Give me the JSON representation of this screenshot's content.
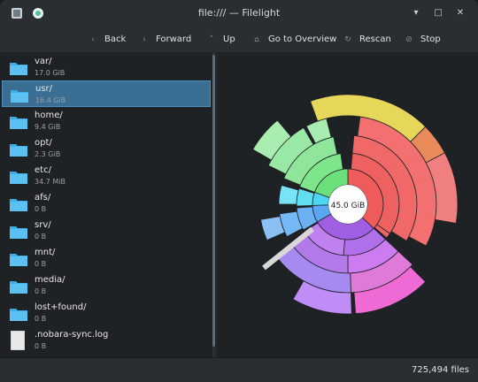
{
  "window": {
    "title": "file:/// — Filelight"
  },
  "toolbar": {
    "back": "Back",
    "forward": "Forward",
    "up": "Up",
    "overview": "Go to Overview",
    "rescan": "Rescan",
    "stop": "Stop"
  },
  "sidebar": {
    "items": [
      {
        "name": "var/",
        "size": "17.0 GiB",
        "icon": "folder-icon"
      },
      {
        "name": "usr/",
        "size": "16.4 GiB",
        "icon": "folder-icon"
      },
      {
        "name": "home/",
        "size": "9.4 GiB",
        "icon": "folder-icon"
      },
      {
        "name": "opt/",
        "size": "2.3 GiB",
        "icon": "folder-icon"
      },
      {
        "name": "etc/",
        "size": "34.7 MiB",
        "icon": "folder-icon"
      },
      {
        "name": "afs/",
        "size": "0 B",
        "icon": "folder-icon"
      },
      {
        "name": "srv/",
        "size": "0 B",
        "icon": "folder-icon"
      },
      {
        "name": "mnt/",
        "size": "0 B",
        "icon": "folder-icon"
      },
      {
        "name": "media/",
        "size": "0 B",
        "icon": "folder-icon"
      },
      {
        "name": "lost+found/",
        "size": "0 B",
        "icon": "folder-icon"
      },
      {
        "name": ".nobara-sync.log",
        "size": "0 B",
        "icon": "file-icon"
      }
    ]
  },
  "center_label": "45.0 GiB",
  "status": {
    "files": "725,494 files"
  },
  "colors": {
    "selected": "#3a6e92",
    "folder": "#3daee9"
  }
}
